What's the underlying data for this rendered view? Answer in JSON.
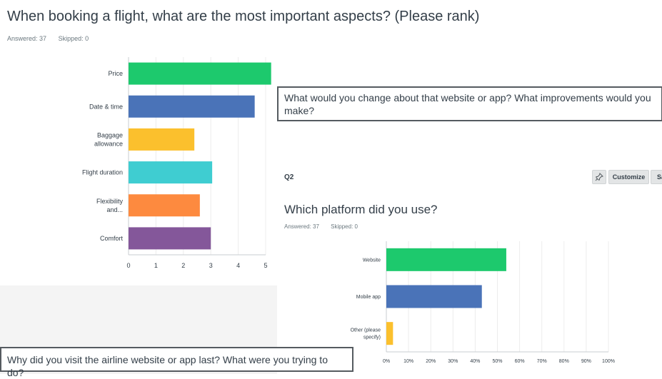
{
  "q1": {
    "title": "When booking a flight, what are the most important aspects? (Please rank)",
    "answered": "Answered: 37",
    "skipped": "Skipped: 0"
  },
  "callout_top": "What would you change about that website or app?  What improvements would you make?",
  "callout_bottom": "Why did you visit the airline website or app last? What were you trying to do?",
  "q2": {
    "label": "Q2",
    "title": "Which platform did you use?",
    "answered": "Answered: 37",
    "skipped": "Skipped: 0",
    "customize_label": "Customize",
    "save_label": "Sa",
    "pin_icon": "pin-icon"
  },
  "chart_data": [
    {
      "type": "bar",
      "orientation": "horizontal",
      "categories": [
        "Price",
        "Date & time",
        "Baggage allowance",
        "Flight duration",
        "Flexibility and...",
        "Comfort"
      ],
      "category_lines": [
        [
          "Price"
        ],
        [
          "Date & time"
        ],
        [
          "Baggage",
          "allowance"
        ],
        [
          "Flight duration"
        ],
        [
          "Flexibility",
          "and..."
        ],
        [
          "Comfort"
        ]
      ],
      "values": [
        5.2,
        4.6,
        2.4,
        3.05,
        2.6,
        3.0
      ],
      "colors": [
        "#1dc96d",
        "#4a73b8",
        "#fbc02d",
        "#3fcdd1",
        "#fd8a3f",
        "#84579a"
      ],
      "xlim": [
        0,
        5
      ],
      "xticks": [
        "0",
        "1",
        "2",
        "3",
        "4",
        "5"
      ],
      "grid": true
    },
    {
      "type": "bar",
      "orientation": "horizontal",
      "categories": [
        "Website",
        "Mobile app",
        "Other (please specify)"
      ],
      "category_lines": [
        [
          "Website"
        ],
        [
          "Mobile app"
        ],
        [
          "Other (please",
          "specify)"
        ]
      ],
      "values": [
        54,
        43,
        3
      ],
      "colors": [
        "#1dc96d",
        "#4a73b8",
        "#fbc02d"
      ],
      "xlim": [
        0,
        100
      ],
      "xticks": [
        "0%",
        "10%",
        "20%",
        "30%",
        "40%",
        "50%",
        "60%",
        "70%",
        "80%",
        "90%",
        "100%"
      ],
      "grid": true
    }
  ]
}
